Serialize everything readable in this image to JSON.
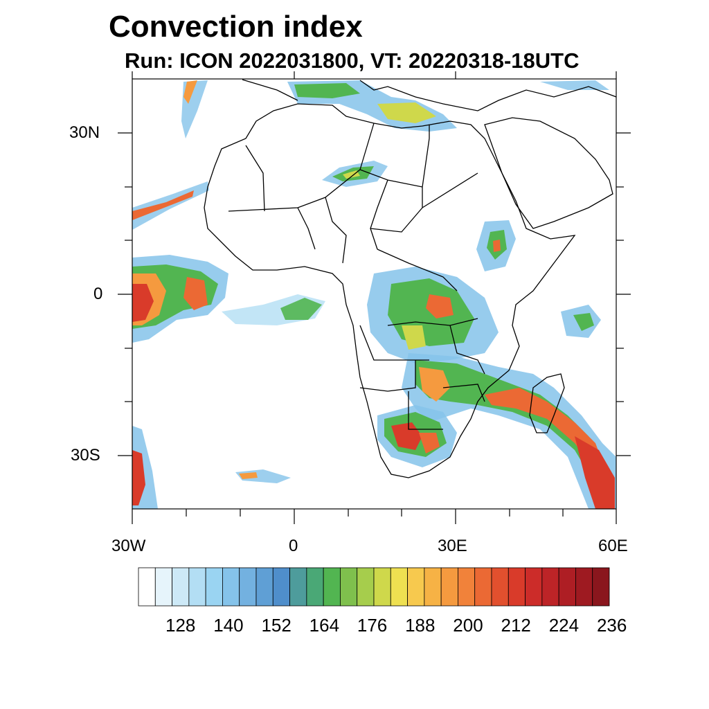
{
  "title": "Convection index",
  "subtitle": "Run: ICON 2022031800,  VT: 20220318-18UTC",
  "map": {
    "lat_labels": [
      "30N",
      "0",
      "30S"
    ],
    "lon_labels": [
      "30W",
      "0",
      "30E",
      "60E"
    ],
    "lon_range": [
      -30,
      60
    ],
    "lat_range": [
      -40,
      40
    ]
  },
  "colorbar": {
    "colors": [
      "#ffffff",
      "#e6f4fb",
      "#cde9f7",
      "#b3def4",
      "#9ad4f2",
      "#85c3ea",
      "#73b1e0",
      "#5f9fd5",
      "#4f8ecb",
      "#4e9c9c",
      "#4aa876",
      "#52b551",
      "#7fc04d",
      "#a6cd4c",
      "#cfd84b",
      "#eee051",
      "#f7c94e",
      "#f6b245",
      "#f59a3f",
      "#f1823a",
      "#eb6934",
      "#e2502e",
      "#d93b2a",
      "#cc2c29",
      "#bd2427",
      "#ae1e24",
      "#9e1a21",
      "#8a161d"
    ],
    "tick_labels": [
      "128",
      "140",
      "152",
      "164",
      "176",
      "188",
      "200",
      "212",
      "224",
      "236"
    ]
  }
}
